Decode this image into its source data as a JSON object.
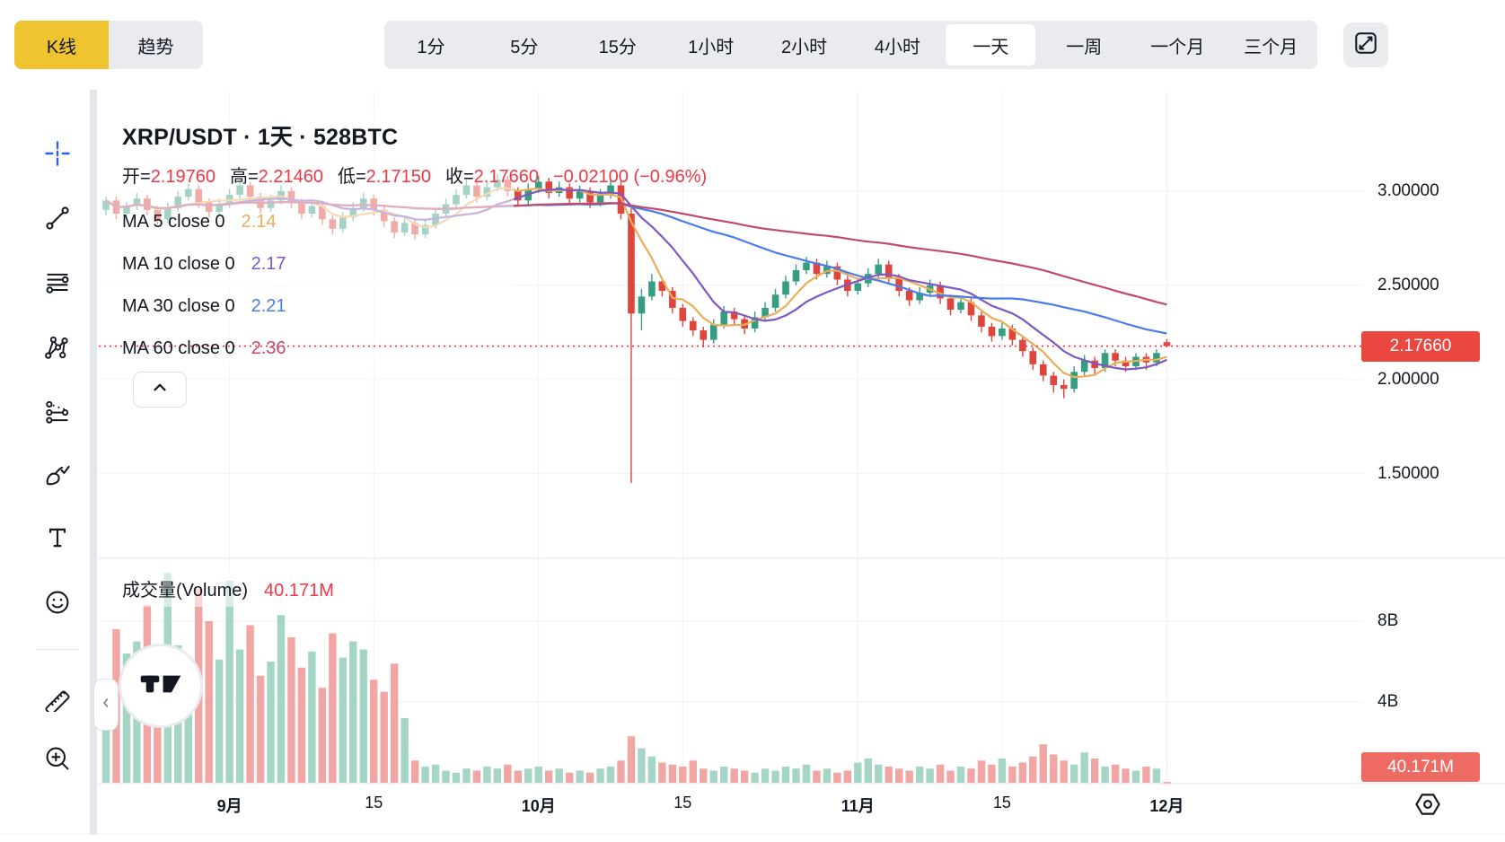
{
  "header": {
    "chart_types": [
      {
        "label": "K线",
        "active": true
      },
      {
        "label": "趋势",
        "active": false
      }
    ],
    "timeframes": [
      {
        "label": "1分",
        "active": false
      },
      {
        "label": "5分",
        "active": false
      },
      {
        "label": "15分",
        "active": false
      },
      {
        "label": "1小时",
        "active": false
      },
      {
        "label": "2小时",
        "active": false
      },
      {
        "label": "4小时",
        "active": false
      },
      {
        "label": "一天",
        "active": true
      },
      {
        "label": "一周",
        "active": false
      },
      {
        "label": "一个月",
        "active": false
      },
      {
        "label": "三个月",
        "active": false
      }
    ],
    "fullscreen_icon": "expand-icon"
  },
  "sidebar": {
    "active_tool": "crosshair",
    "tools_top": [
      "crosshair",
      "trend-line",
      "horizontal-lines",
      "xabcd-pattern",
      "forecast",
      "brush",
      "text",
      "emoji"
    ],
    "tools_bottom": [
      "ruler",
      "zoom-in"
    ]
  },
  "chart": {
    "title": "XRP/USDT · 1天 · 528BTC",
    "ohlc": {
      "fields": [
        {
          "label": "开",
          "value": "2.19760"
        },
        {
          "label": "高",
          "value": "2.21460"
        },
        {
          "label": "低",
          "value": "2.17150"
        },
        {
          "label": "收",
          "value": "2.17660"
        }
      ],
      "change": "−0.02100 (−0.96%)"
    },
    "price_badge": "2.17660",
    "collapse_icon": "chevron-up-icon",
    "watermark": "tradingview-logo",
    "settings_icon": "gear-icon"
  },
  "volume": {
    "title": "成交量(Volume)",
    "value": "40.171M",
    "badge": "40.171M"
  },
  "colors": {
    "accent_yellow": "#F0C330",
    "toolbar_gray": "#E9EBEE",
    "text": "#131722",
    "up": "#379D80",
    "down": "#E0453C",
    "vol_up": "#A5D5C5",
    "vol_down": "#F2A6A3",
    "grid": "#F0F2F6",
    "pane_divider": "#E1E4EA",
    "last_price": "#F23645",
    "price_badge_bg": "#EA4740",
    "volume_badge_bg": "#EE6B64",
    "crosshair_blue": "#2962FF"
  },
  "chart_data": {
    "type": "candlestick+volume",
    "symbol": "XRP/USDT",
    "interval": "一天",
    "price_range": {
      "min": 1.05,
      "max": 3.49
    },
    "volume_unit": "B",
    "last_price": 2.1766,
    "price_axis_ticks": [
      {
        "label": "3.00000",
        "value": 3.0
      },
      {
        "label": "2.50000",
        "value": 2.5
      },
      {
        "label": "2.00000",
        "value": 2.0
      },
      {
        "label": "1.50000",
        "value": 1.5
      }
    ],
    "volume_axis_ticks": [
      {
        "label": "8B",
        "value": 8
      },
      {
        "label": "4B",
        "value": 4
      }
    ],
    "time_axis_ticks": [
      {
        "label": "9月",
        "index": 12,
        "bold": true
      },
      {
        "label": "15",
        "index": 26,
        "bold": false
      },
      {
        "label": "10月",
        "index": 42,
        "bold": true
      },
      {
        "label": "15",
        "index": 56,
        "bold": false
      },
      {
        "label": "11月",
        "index": 73,
        "bold": true
      },
      {
        "label": "15",
        "index": 87,
        "bold": false
      },
      {
        "label": "12月",
        "index": 103,
        "bold": true
      }
    ],
    "ma_overlays": [
      {
        "label": "MA 5 close 0",
        "period": 5,
        "value": "2.14",
        "color": "#E9AE5A"
      },
      {
        "label": "MA 10 close 0",
        "period": 10,
        "value": "2.17",
        "color": "#7E57C2"
      },
      {
        "label": "MA 30 close 0",
        "period": 30,
        "value": "2.21",
        "color": "#4A7BEC"
      },
      {
        "label": "MA 60 close 0",
        "period": 60,
        "value": "2.36",
        "color": "#C2496B"
      }
    ],
    "candles_format": [
      "open",
      "high",
      "low",
      "close",
      "volume_B"
    ],
    "candles": [
      [
        2.9,
        2.97,
        2.87,
        2.95,
        5.0
      ],
      [
        2.95,
        2.97,
        2.85,
        2.88,
        7.6
      ],
      [
        2.88,
        2.94,
        2.86,
        2.92,
        6.4
      ],
      [
        2.92,
        2.99,
        2.9,
        2.96,
        7.0
      ],
      [
        2.96,
        2.98,
        2.87,
        2.9,
        8.8
      ],
      [
        2.9,
        2.92,
        2.82,
        2.85,
        5.6
      ],
      [
        2.85,
        2.94,
        2.83,
        2.91,
        10.4
      ],
      [
        2.91,
        3.0,
        2.89,
        2.97,
        6.8
      ],
      [
        2.97,
        3.04,
        2.95,
        3.01,
        4.2
      ],
      [
        3.01,
        3.03,
        2.91,
        2.94,
        9.6
      ],
      [
        2.94,
        2.96,
        2.86,
        2.89,
        8.0
      ],
      [
        2.89,
        2.96,
        2.87,
        2.93,
        6.1
      ],
      [
        2.93,
        3.01,
        2.91,
        2.98,
        10.0
      ],
      [
        2.98,
        3.06,
        2.96,
        3.03,
        6.6
      ],
      [
        3.03,
        3.05,
        2.94,
        2.97,
        7.8
      ],
      [
        2.97,
        2.99,
        2.88,
        2.91,
        5.3
      ],
      [
        2.91,
        2.98,
        2.89,
        2.95,
        6.0
      ],
      [
        2.95,
        3.03,
        2.93,
        3.0,
        8.3
      ],
      [
        3.0,
        3.02,
        2.91,
        2.94,
        7.2
      ],
      [
        2.94,
        2.96,
        2.85,
        2.88,
        5.7
      ],
      [
        2.88,
        2.95,
        2.86,
        2.92,
        6.5
      ],
      [
        2.92,
        2.94,
        2.82,
        2.85,
        4.7
      ],
      [
        2.85,
        2.87,
        2.77,
        2.8,
        7.4
      ],
      [
        2.8,
        2.89,
        2.78,
        2.86,
        6.2
      ],
      [
        2.86,
        2.94,
        2.84,
        2.91,
        7.0
      ],
      [
        2.91,
        2.99,
        2.89,
        2.96,
        6.6
      ],
      [
        2.96,
        2.98,
        2.87,
        2.9,
        5.1
      ],
      [
        2.9,
        2.92,
        2.81,
        2.84,
        4.5
      ],
      [
        2.84,
        2.86,
        2.75,
        2.78,
        5.9
      ],
      [
        2.78,
        2.86,
        2.76,
        2.83,
        3.2
      ],
      [
        2.83,
        2.85,
        2.74,
        2.77,
        1.1
      ],
      [
        2.77,
        2.85,
        2.75,
        2.82,
        0.8
      ],
      [
        2.82,
        2.91,
        2.8,
        2.88,
        0.9
      ],
      [
        2.88,
        2.96,
        2.86,
        2.93,
        0.6
      ],
      [
        2.93,
        3.01,
        2.91,
        2.98,
        0.5
      ],
      [
        2.98,
        3.06,
        2.96,
        3.03,
        0.7
      ],
      [
        3.03,
        3.05,
        2.94,
        2.97,
        0.6
      ],
      [
        2.97,
        3.05,
        2.95,
        3.02,
        0.8
      ],
      [
        3.02,
        3.09,
        3.0,
        3.06,
        0.7
      ],
      [
        3.06,
        3.08,
        2.97,
        3.0,
        0.9
      ],
      [
        3.0,
        3.02,
        2.92,
        2.95,
        0.6
      ],
      [
        2.95,
        3.04,
        2.93,
        3.01,
        0.7
      ],
      [
        3.01,
        3.08,
        2.99,
        3.05,
        0.8
      ],
      [
        3.05,
        3.07,
        2.96,
        2.99,
        0.6
      ],
      [
        2.99,
        3.05,
        2.97,
        3.02,
        0.7
      ],
      [
        3.02,
        3.04,
        2.93,
        2.96,
        0.5
      ],
      [
        2.96,
        3.03,
        2.94,
        3.0,
        0.6
      ],
      [
        3.0,
        3.02,
        2.91,
        2.94,
        0.5
      ],
      [
        2.94,
        3.01,
        2.92,
        2.98,
        0.7
      ],
      [
        2.98,
        3.06,
        2.96,
        3.03,
        0.8
      ],
      [
        3.03,
        3.05,
        2.85,
        2.88,
        1.1
      ],
      [
        2.88,
        2.91,
        1.45,
        2.35,
        2.3
      ],
      [
        2.35,
        2.48,
        2.26,
        2.44,
        1.7
      ],
      [
        2.44,
        2.56,
        2.42,
        2.52,
        1.3
      ],
      [
        2.52,
        2.54,
        2.44,
        2.47,
        1.0
      ],
      [
        2.47,
        2.49,
        2.35,
        2.38,
        0.9
      ],
      [
        2.38,
        2.4,
        2.28,
        2.31,
        0.8
      ],
      [
        2.31,
        2.33,
        2.23,
        2.26,
        1.1
      ],
      [
        2.26,
        2.28,
        2.17,
        2.21,
        0.7
      ],
      [
        2.21,
        2.32,
        2.19,
        2.29,
        0.6
      ],
      [
        2.29,
        2.39,
        2.27,
        2.36,
        0.8
      ],
      [
        2.36,
        2.38,
        2.29,
        2.32,
        0.7
      ],
      [
        2.32,
        2.34,
        2.24,
        2.27,
        0.6
      ],
      [
        2.27,
        2.36,
        2.25,
        2.33,
        0.5
      ],
      [
        2.33,
        2.41,
        2.31,
        2.38,
        0.7
      ],
      [
        2.38,
        2.48,
        2.36,
        2.45,
        0.6
      ],
      [
        2.45,
        2.55,
        2.43,
        2.52,
        0.8
      ],
      [
        2.52,
        2.61,
        2.5,
        2.58,
        0.7
      ],
      [
        2.58,
        2.65,
        2.56,
        2.62,
        0.9
      ],
      [
        2.62,
        2.64,
        2.53,
        2.56,
        0.6
      ],
      [
        2.56,
        2.63,
        2.54,
        2.6,
        0.7
      ],
      [
        2.6,
        2.62,
        2.5,
        2.53,
        0.5
      ],
      [
        2.53,
        2.55,
        2.44,
        2.47,
        0.6
      ],
      [
        2.47,
        2.54,
        2.45,
        2.51,
        1.0
      ],
      [
        2.51,
        2.59,
        2.49,
        2.56,
        1.2
      ],
      [
        2.56,
        2.64,
        2.54,
        2.61,
        0.9
      ],
      [
        2.61,
        2.63,
        2.51,
        2.54,
        0.8
      ],
      [
        2.54,
        2.56,
        2.44,
        2.47,
        0.7
      ],
      [
        2.47,
        2.49,
        2.39,
        2.42,
        0.6
      ],
      [
        2.42,
        2.49,
        2.4,
        2.46,
        0.8
      ],
      [
        2.46,
        2.53,
        2.44,
        2.5,
        0.7
      ],
      [
        2.5,
        2.52,
        2.4,
        2.43,
        0.9
      ],
      [
        2.43,
        2.45,
        2.34,
        2.37,
        0.6
      ],
      [
        2.37,
        2.44,
        2.35,
        2.41,
        0.8
      ],
      [
        2.41,
        2.43,
        2.31,
        2.34,
        0.7
      ],
      [
        2.34,
        2.36,
        2.25,
        2.28,
        1.1
      ],
      [
        2.28,
        2.3,
        2.2,
        2.23,
        0.9
      ],
      [
        2.23,
        2.3,
        2.21,
        2.27,
        1.2
      ],
      [
        2.27,
        2.29,
        2.18,
        2.21,
        0.8
      ],
      [
        2.21,
        2.23,
        2.12,
        2.15,
        1.0
      ],
      [
        2.15,
        2.17,
        2.05,
        2.08,
        1.3
      ],
      [
        2.08,
        2.1,
        1.99,
        2.02,
        1.9
      ],
      [
        2.02,
        2.04,
        1.93,
        1.97,
        1.4
      ],
      [
        1.97,
        2.0,
        1.9,
        1.95,
        1.1
      ],
      [
        1.95,
        2.07,
        1.93,
        2.04,
        0.9
      ],
      [
        2.04,
        2.13,
        2.02,
        2.1,
        1.5
      ],
      [
        2.1,
        2.12,
        2.03,
        2.06,
        1.2
      ],
      [
        2.06,
        2.16,
        2.04,
        2.14,
        0.8
      ],
      [
        2.14,
        2.16,
        2.07,
        2.1,
        0.9
      ],
      [
        2.1,
        2.12,
        2.04,
        2.07,
        0.7
      ],
      [
        2.07,
        2.14,
        2.05,
        2.12,
        0.6
      ],
      [
        2.12,
        2.14,
        2.05,
        2.09,
        0.8
      ],
      [
        2.09,
        2.16,
        2.07,
        2.14,
        0.7
      ],
      [
        2.1976,
        2.2146,
        2.1715,
        2.1766,
        0.04
      ]
    ]
  }
}
